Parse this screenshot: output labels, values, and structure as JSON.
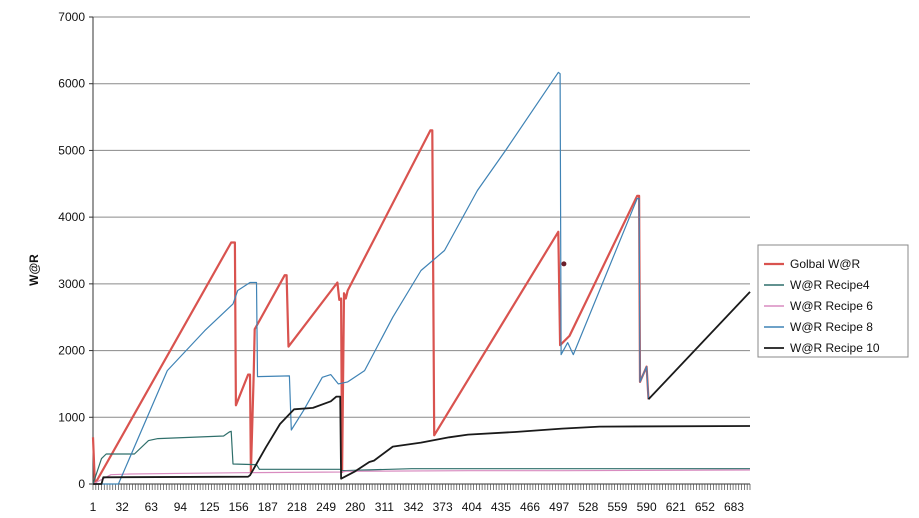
{
  "chart_data": {
    "type": "line",
    "title": "",
    "xlabel": "",
    "ylabel": "W@R",
    "ylim": [
      0,
      7000
    ],
    "yticks": [
      0,
      1000,
      2000,
      3000,
      4000,
      5000,
      6000,
      7000
    ],
    "xlim": [
      1,
      700
    ],
    "xticks": [
      1,
      32,
      63,
      94,
      125,
      156,
      187,
      218,
      249,
      280,
      311,
      342,
      373,
      404,
      435,
      466,
      497,
      528,
      559,
      590,
      621,
      652,
      683
    ],
    "grid": "horizontal",
    "legend_position": "right",
    "series": [
      {
        "name": "Golbal W@R",
        "color": "#d9534f",
        "width": 2.2,
        "points": [
          [
            1,
            700
          ],
          [
            3,
            0
          ],
          [
            148,
            3620
          ],
          [
            152,
            3620
          ],
          [
            153,
            1180
          ],
          [
            166,
            1640
          ],
          [
            168,
            1640
          ],
          [
            169,
            180
          ],
          [
            172,
            1640
          ],
          [
            173,
            2320
          ],
          [
            205,
            3130
          ],
          [
            207,
            3130
          ],
          [
            209,
            2060
          ],
          [
            261,
            3020
          ],
          [
            263,
            2760
          ],
          [
            265,
            2780
          ],
          [
            266,
            180
          ],
          [
            268,
            2860
          ],
          [
            270,
            2780
          ],
          [
            272,
            2900
          ],
          [
            360,
            5300
          ],
          [
            362,
            5300
          ],
          [
            364,
            730
          ],
          [
            496,
            3780
          ],
          [
            498,
            2080
          ],
          [
            508,
            2220
          ],
          [
            580,
            4320
          ],
          [
            582,
            4320
          ],
          [
            583,
            1530
          ],
          [
            590,
            1760
          ],
          [
            592,
            1270
          ]
        ]
      },
      {
        "name": "W@R Recipe4",
        "color": "#2f6f6b",
        "width": 1.2,
        "points": [
          [
            1,
            0
          ],
          [
            10,
            380
          ],
          [
            15,
            450
          ],
          [
            45,
            450
          ],
          [
            60,
            650
          ],
          [
            70,
            680
          ],
          [
            140,
            720
          ],
          [
            146,
            780
          ],
          [
            148,
            790
          ],
          [
            150,
            300
          ],
          [
            175,
            290
          ],
          [
            178,
            220
          ],
          [
            264,
            220
          ],
          [
            266,
            200
          ],
          [
            290,
            210
          ],
          [
            340,
            230
          ],
          [
            700,
            230
          ]
        ]
      },
      {
        "name": "W@R Recipe 6",
        "color": "#d98cc0",
        "width": 1.2,
        "points": [
          [
            1,
            0
          ],
          [
            20,
            140
          ],
          [
            40,
            150
          ],
          [
            100,
            160
          ],
          [
            160,
            170
          ],
          [
            266,
            180
          ],
          [
            270,
            190
          ],
          [
            400,
            200
          ],
          [
            500,
            200
          ],
          [
            700,
            210
          ]
        ]
      },
      {
        "name": "W@R Recipe 8",
        "color": "#3f83b5",
        "width": 1.2,
        "points": [
          [
            1,
            0
          ],
          [
            28,
            0
          ],
          [
            80,
            1700
          ],
          [
            120,
            2300
          ],
          [
            150,
            2700
          ],
          [
            155,
            2900
          ],
          [
            168,
            3020
          ],
          [
            175,
            3020
          ],
          [
            176,
            1610
          ],
          [
            210,
            1620
          ],
          [
            212,
            810
          ],
          [
            225,
            1100
          ],
          [
            245,
            1600
          ],
          [
            254,
            1640
          ],
          [
            262,
            1500
          ],
          [
            272,
            1530
          ],
          [
            290,
            1700
          ],
          [
            320,
            2500
          ],
          [
            350,
            3200
          ],
          [
            375,
            3500
          ],
          [
            410,
            4400
          ],
          [
            440,
            5000
          ],
          [
            496,
            6170
          ],
          [
            498,
            6150
          ],
          [
            499,
            1940
          ],
          [
            506,
            2120
          ],
          [
            512,
            1940
          ],
          [
            580,
            4280
          ],
          [
            582,
            4280
          ],
          [
            583,
            1530
          ],
          [
            590,
            1760
          ],
          [
            592,
            1270
          ]
        ]
      },
      {
        "name": "W@R Recipe 10",
        "color": "#1a1a1a",
        "width": 1.8,
        "points": [
          [
            1,
            0
          ],
          [
            10,
            0
          ],
          [
            12,
            100
          ],
          [
            166,
            110
          ],
          [
            168,
            130
          ],
          [
            185,
            550
          ],
          [
            200,
            900
          ],
          [
            215,
            1120
          ],
          [
            235,
            1140
          ],
          [
            254,
            1240
          ],
          [
            260,
            1310
          ],
          [
            264,
            1310
          ],
          [
            265,
            80
          ],
          [
            280,
            190
          ],
          [
            295,
            330
          ],
          [
            300,
            350
          ],
          [
            320,
            560
          ],
          [
            350,
            620
          ],
          [
            380,
            700
          ],
          [
            400,
            740
          ],
          [
            450,
            780
          ],
          [
            500,
            830
          ],
          [
            540,
            860
          ],
          [
            700,
            870
          ]
        ]
      },
      {
        "name": "W@R Recipe 10",
        "color": "#1a1a1a",
        "width": 1.8,
        "points": [
          [
            592,
            1270
          ],
          [
            700,
            2880
          ]
        ]
      }
    ],
    "annotation_points": [
      {
        "x": 502,
        "y": 3300
      }
    ]
  }
}
